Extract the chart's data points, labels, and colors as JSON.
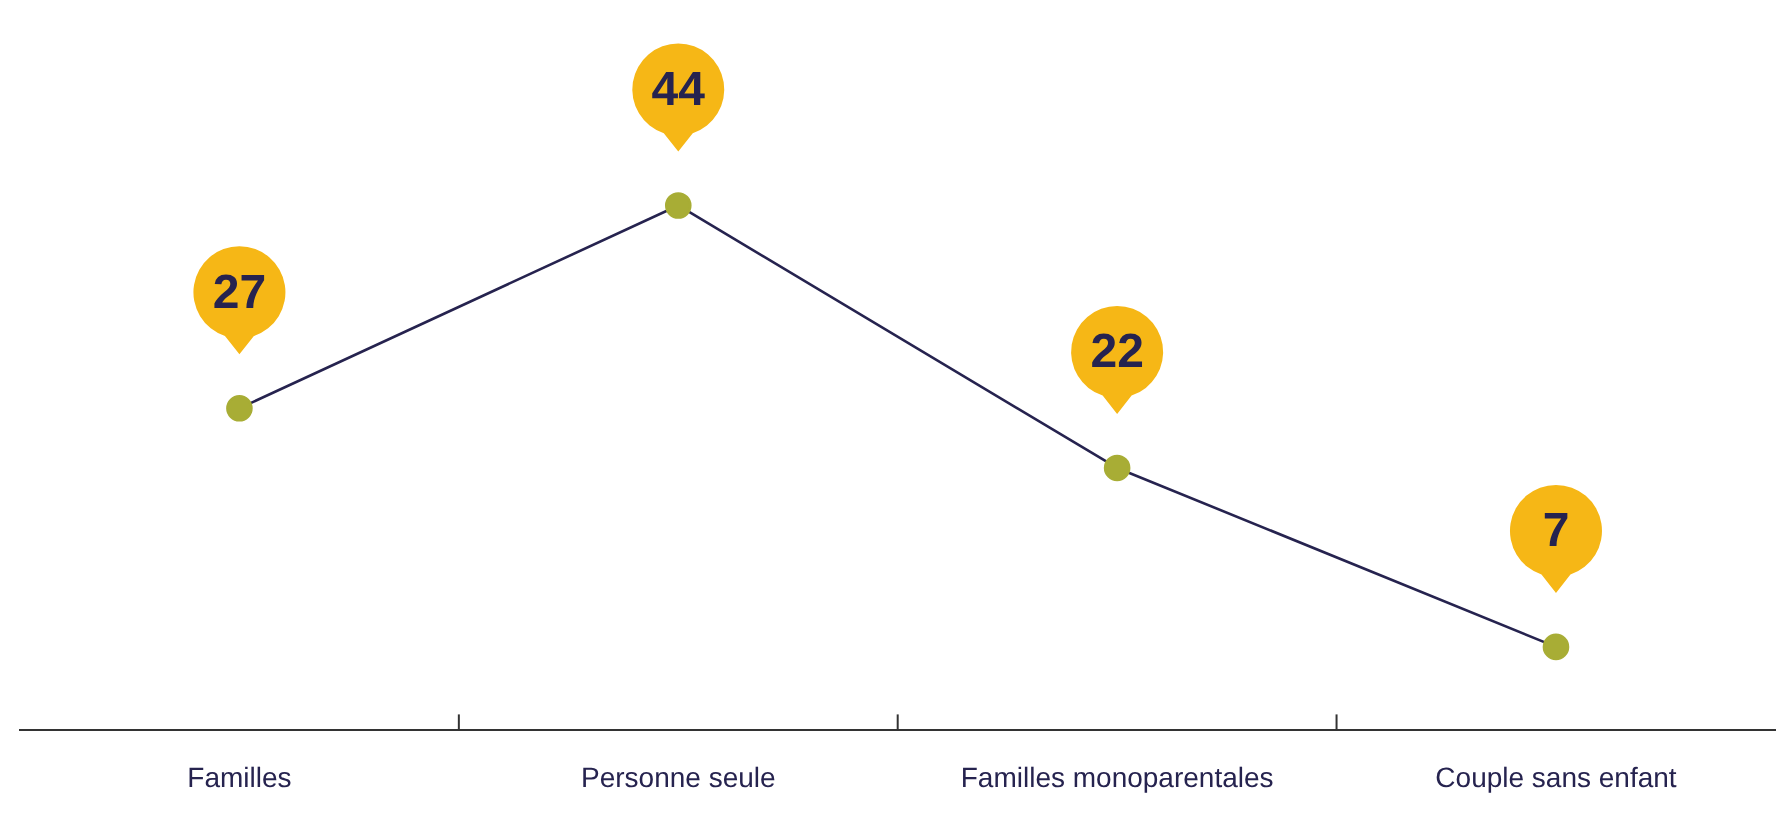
{
  "chart_data": {
    "type": "line",
    "categories": [
      "Familles",
      "Personne seule",
      "Familles monoparentales",
      "Couple sans enfant"
    ],
    "series": [
      {
        "color": "#26234f",
        "values": [
          27,
          44,
          22,
          7
        ]
      }
    ],
    "marker": "circle",
    "data_labels": true,
    "grid": false,
    "legend": false,
    "tick_labels": "x"
  }
}
